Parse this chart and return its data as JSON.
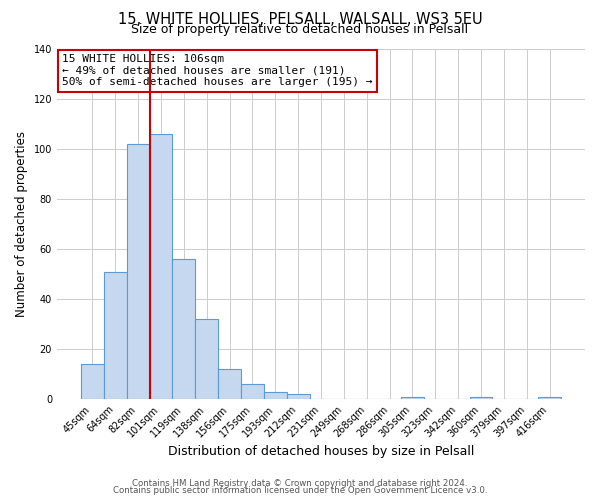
{
  "title1": "15, WHITE HOLLIES, PELSALL, WALSALL, WS3 5EU",
  "title2": "Size of property relative to detached houses in Pelsall",
  "xlabel": "Distribution of detached houses by size in Pelsall",
  "ylabel": "Number of detached properties",
  "bar_labels": [
    "45sqm",
    "64sqm",
    "82sqm",
    "101sqm",
    "119sqm",
    "138sqm",
    "156sqm",
    "175sqm",
    "193sqm",
    "212sqm",
    "231sqm",
    "249sqm",
    "268sqm",
    "286sqm",
    "305sqm",
    "323sqm",
    "342sqm",
    "360sqm",
    "379sqm",
    "397sqm",
    "416sqm"
  ],
  "bar_values": [
    14,
    51,
    102,
    106,
    56,
    32,
    12,
    6,
    3,
    2,
    0,
    0,
    0,
    0,
    1,
    0,
    0,
    1,
    0,
    0,
    1
  ],
  "bar_color": "#c5d8f0",
  "bar_edge_color": "#5b9bd5",
  "vline_color": "#cc0000",
  "ylim": [
    0,
    140
  ],
  "yticks": [
    0,
    20,
    40,
    60,
    80,
    100,
    120,
    140
  ],
  "annotation_title": "15 WHITE HOLLIES: 106sqm",
  "annotation_line1": "← 49% of detached houses are smaller (191)",
  "annotation_line2": "50% of semi-detached houses are larger (195) →",
  "annotation_box_color": "#ffffff",
  "annotation_box_edge_color": "#cc0000",
  "footer1": "Contains HM Land Registry data © Crown copyright and database right 2024.",
  "footer2": "Contains public sector information licensed under the Open Government Licence v3.0."
}
